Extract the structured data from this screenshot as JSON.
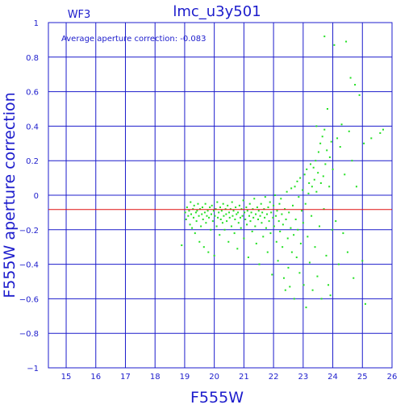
{
  "chart_data": {
    "type": "scatter",
    "title": "lmc_u3y501",
    "chip_label": "WF3",
    "annotation": "Average aperture correction: -0.083",
    "xlabel": "F555W",
    "ylabel": "F555W aperture correction",
    "xlim": [
      14.4,
      26.0
    ],
    "ylim": [
      -1.0,
      1.0
    ],
    "x_ticks": [
      "15",
      "16",
      "17",
      "18",
      "19",
      "20",
      "21",
      "22",
      "23",
      "24",
      "25",
      "26"
    ],
    "y_ticks": [
      "−1",
      "−0.8",
      "−0.6",
      "−0.4",
      "−0.2",
      "0",
      "0.2",
      "0.4",
      "0.6",
      "0.8",
      "1"
    ],
    "grid": true,
    "reference_line": {
      "y": -0.083,
      "color": "#e01010"
    },
    "colors": {
      "axes": "#1c1ccc",
      "points": "#22e022",
      "reference": "#e01010"
    },
    "series": [
      {
        "points": [
          [
            18.9,
            -0.29
          ],
          [
            19.02,
            -0.1
          ],
          [
            19.05,
            -0.14
          ],
          [
            19.08,
            -0.07
          ],
          [
            19.12,
            -0.12
          ],
          [
            19.15,
            -0.09
          ],
          [
            19.18,
            -0.17
          ],
          [
            19.2,
            -0.04
          ],
          [
            19.22,
            -0.11
          ],
          [
            19.25,
            -0.19
          ],
          [
            19.28,
            -0.08
          ],
          [
            19.3,
            -0.13
          ],
          [
            19.32,
            -0.06
          ],
          [
            19.35,
            -0.22
          ],
          [
            19.38,
            -0.1
          ],
          [
            19.4,
            -0.15
          ],
          [
            19.42,
            -0.09
          ],
          [
            19.45,
            -0.05
          ],
          [
            19.48,
            -0.12
          ],
          [
            19.5,
            -0.27
          ],
          [
            19.52,
            -0.08
          ],
          [
            19.55,
            -0.18
          ],
          [
            19.58,
            -0.11
          ],
          [
            19.6,
            -0.07
          ],
          [
            19.62,
            -0.14
          ],
          [
            19.65,
            -0.3
          ],
          [
            19.68,
            -0.1
          ],
          [
            19.7,
            -0.05
          ],
          [
            19.72,
            -0.16
          ],
          [
            19.75,
            -0.12
          ],
          [
            19.78,
            -0.09
          ],
          [
            19.8,
            -0.33
          ],
          [
            19.82,
            -0.13
          ],
          [
            19.85,
            -0.07
          ],
          [
            19.88,
            -0.2
          ],
          [
            19.9,
            -0.11
          ],
          [
            19.92,
            -0.06
          ],
          [
            19.95,
            -0.15
          ],
          [
            19.98,
            -0.09
          ],
          [
            20.0,
            -0.35
          ],
          [
            20.02,
            -0.12
          ],
          [
            20.05,
            -0.08
          ],
          [
            20.08,
            -0.18
          ],
          [
            20.1,
            -0.04
          ],
          [
            20.12,
            -0.13
          ],
          [
            20.15,
            -0.1
          ],
          [
            20.18,
            -0.23
          ],
          [
            20.2,
            -0.07
          ],
          [
            20.22,
            -0.14
          ],
          [
            20.25,
            -0.09
          ],
          [
            20.28,
            -0.16
          ],
          [
            20.3,
            -0.05
          ],
          [
            20.32,
            -0.12
          ],
          [
            20.35,
            -0.2
          ],
          [
            20.38,
            -0.08
          ],
          [
            20.4,
            -0.11
          ],
          [
            20.42,
            -0.15
          ],
          [
            20.45,
            -0.06
          ],
          [
            20.48,
            -0.27
          ],
          [
            20.5,
            -0.1
          ],
          [
            20.52,
            -0.13
          ],
          [
            20.55,
            -0.08
          ],
          [
            20.58,
            -0.18
          ],
          [
            20.6,
            -0.04
          ],
          [
            20.62,
            -0.12
          ],
          [
            20.65,
            -0.09
          ],
          [
            20.68,
            -0.22
          ],
          [
            20.7,
            -0.14
          ],
          [
            20.72,
            -0.07
          ],
          [
            20.75,
            -0.11
          ],
          [
            20.78,
            -0.31
          ],
          [
            20.8,
            -0.1
          ],
          [
            20.82,
            -0.16
          ],
          [
            20.85,
            -0.06
          ],
          [
            20.88,
            -0.13
          ],
          [
            20.9,
            -0.19
          ],
          [
            20.92,
            -0.08
          ],
          [
            20.95,
            -0.12
          ],
          [
            20.98,
            -0.03
          ],
          [
            21.0,
            -0.25
          ],
          [
            21.02,
            -0.1
          ],
          [
            21.05,
            -0.14
          ],
          [
            21.08,
            -0.07
          ],
          [
            21.1,
            -0.17
          ],
          [
            21.12,
            -0.09
          ],
          [
            21.15,
            -0.36
          ],
          [
            21.18,
            -0.12
          ],
          [
            21.2,
            -0.05
          ],
          [
            21.22,
            -0.15
          ],
          [
            21.25,
            -0.1
          ],
          [
            21.28,
            -0.21
          ],
          [
            21.3,
            -0.08
          ],
          [
            21.32,
            -0.13
          ],
          [
            21.35,
            -0.02
          ],
          [
            21.38,
            -0.18
          ],
          [
            21.4,
            -0.11
          ],
          [
            21.42,
            -0.28
          ],
          [
            21.45,
            -0.07
          ],
          [
            21.48,
            -0.14
          ],
          [
            21.5,
            -0.09
          ],
          [
            21.52,
            -0.4
          ],
          [
            21.55,
            -0.12
          ],
          [
            21.58,
            -0.05
          ],
          [
            21.6,
            -0.16
          ],
          [
            21.62,
            -0.1
          ],
          [
            21.65,
            -0.24
          ],
          [
            21.68,
            -0.08
          ],
          [
            21.7,
            -0.13
          ],
          [
            21.72,
            -0.01
          ],
          [
            21.75,
            -0.19
          ],
          [
            21.78,
            -0.11
          ],
          [
            21.8,
            -0.33
          ],
          [
            21.82,
            -0.07
          ],
          [
            21.85,
            -0.15
          ],
          [
            21.88,
            -0.04
          ],
          [
            21.9,
            -0.22
          ],
          [
            21.92,
            -0.1
          ],
          [
            21.95,
            -0.46
          ],
          [
            21.98,
            -0.13
          ],
          [
            22.0,
            -0.06
          ],
          [
            22.02,
            -0.18
          ],
          [
            22.05,
            0.0
          ],
          [
            22.08,
            -0.12
          ],
          [
            22.1,
            -0.27
          ],
          [
            22.12,
            -0.09
          ],
          [
            22.15,
            -0.38
          ],
          [
            22.18,
            -0.15
          ],
          [
            22.2,
            -0.05
          ],
          [
            22.22,
            -0.21
          ],
          [
            22.25,
            -0.02
          ],
          [
            22.28,
            -0.11
          ],
          [
            22.3,
            -0.3
          ],
          [
            22.32,
            -0.17
          ],
          [
            22.35,
            -0.48
          ],
          [
            22.38,
            -0.08
          ],
          [
            22.4,
            -0.55
          ],
          [
            22.42,
            -0.14
          ],
          [
            22.45,
            0.02
          ],
          [
            22.48,
            -0.25
          ],
          [
            22.5,
            -0.42
          ],
          [
            22.52,
            -0.1
          ],
          [
            22.55,
            -0.53
          ],
          [
            22.58,
            -0.19
          ],
          [
            22.6,
            0.04
          ],
          [
            22.62,
            -0.33
          ],
          [
            22.65,
            -0.06
          ],
          [
            22.68,
            -0.23
          ],
          [
            22.7,
            -0.6
          ],
          [
            22.72,
            0.05
          ],
          [
            22.75,
            -0.14
          ],
          [
            22.78,
            -0.36
          ],
          [
            22.8,
            0.08
          ],
          [
            22.82,
            -0.2
          ],
          [
            22.85,
            -0.01
          ],
          [
            22.88,
            -0.45
          ],
          [
            22.9,
            0.1
          ],
          [
            22.92,
            -0.28
          ],
          [
            22.95,
            -0.09
          ],
          [
            22.98,
            0.03
          ],
          [
            23.0,
            -0.16
          ],
          [
            23.02,
            -0.52
          ],
          [
            23.05,
            0.12
          ],
          [
            23.08,
            -0.05
          ],
          [
            23.1,
            -0.65
          ],
          [
            23.12,
            0.15
          ],
          [
            23.15,
            -0.24
          ],
          [
            23.18,
            0.01
          ],
          [
            23.2,
            0.07
          ],
          [
            23.22,
            -0.39
          ],
          [
            23.25,
            0.18
          ],
          [
            23.28,
            -0.12
          ],
          [
            23.3,
            0.05
          ],
          [
            23.32,
            -0.55
          ],
          [
            23.35,
            0.16
          ],
          [
            23.38,
            0.09
          ],
          [
            23.4,
            -0.3
          ],
          [
            23.42,
            0.2
          ],
          [
            23.45,
            0.02
          ],
          [
            23.48,
            -0.47
          ],
          [
            23.5,
            0.13
          ],
          [
            23.52,
            0.25
          ],
          [
            23.55,
            -0.18
          ],
          [
            23.58,
            0.3
          ],
          [
            23.6,
            0.07
          ],
          [
            23.62,
            -0.6
          ],
          [
            23.65,
            0.34
          ],
          [
            23.68,
            0.11
          ],
          [
            23.7,
            -0.08
          ],
          [
            23.72,
            0.38
          ],
          [
            23.75,
            0.18
          ],
          [
            23.78,
            -0.35
          ],
          [
            23.8,
            0.26
          ],
          [
            23.82,
            0.5
          ],
          [
            23.85,
            -0.52
          ],
          [
            23.88,
            0.05
          ],
          [
            23.9,
            0.22
          ],
          [
            23.92,
            -0.58
          ],
          [
            23.95,
            0.31
          ],
          [
            23.98,
            -0.2
          ],
          [
            24.0,
            0.15
          ],
          [
            24.05,
            0.87
          ],
          [
            24.1,
            -0.15
          ],
          [
            24.15,
            0.33
          ],
          [
            24.2,
            -0.4
          ],
          [
            24.25,
            0.28
          ],
          [
            24.3,
            0.41
          ],
          [
            24.35,
            -0.22
          ],
          [
            24.4,
            0.12
          ],
          [
            24.45,
            0.89
          ],
          [
            24.5,
            -0.33
          ],
          [
            24.55,
            0.37
          ],
          [
            24.6,
            0.68
          ],
          [
            24.65,
            0.2
          ],
          [
            24.7,
            -0.48
          ],
          [
            24.75,
            0.64
          ],
          [
            24.8,
            0.05
          ],
          [
            24.9,
            0.58
          ],
          [
            25.0,
            -0.38
          ],
          [
            25.05,
            0.3
          ],
          [
            25.1,
            -0.63
          ],
          [
            25.3,
            0.33
          ],
          [
            25.6,
            0.36
          ],
          [
            25.7,
            0.38
          ],
          [
            23.72,
            0.92
          ],
          [
            23.45,
            0.4
          ]
        ]
      }
    ]
  }
}
